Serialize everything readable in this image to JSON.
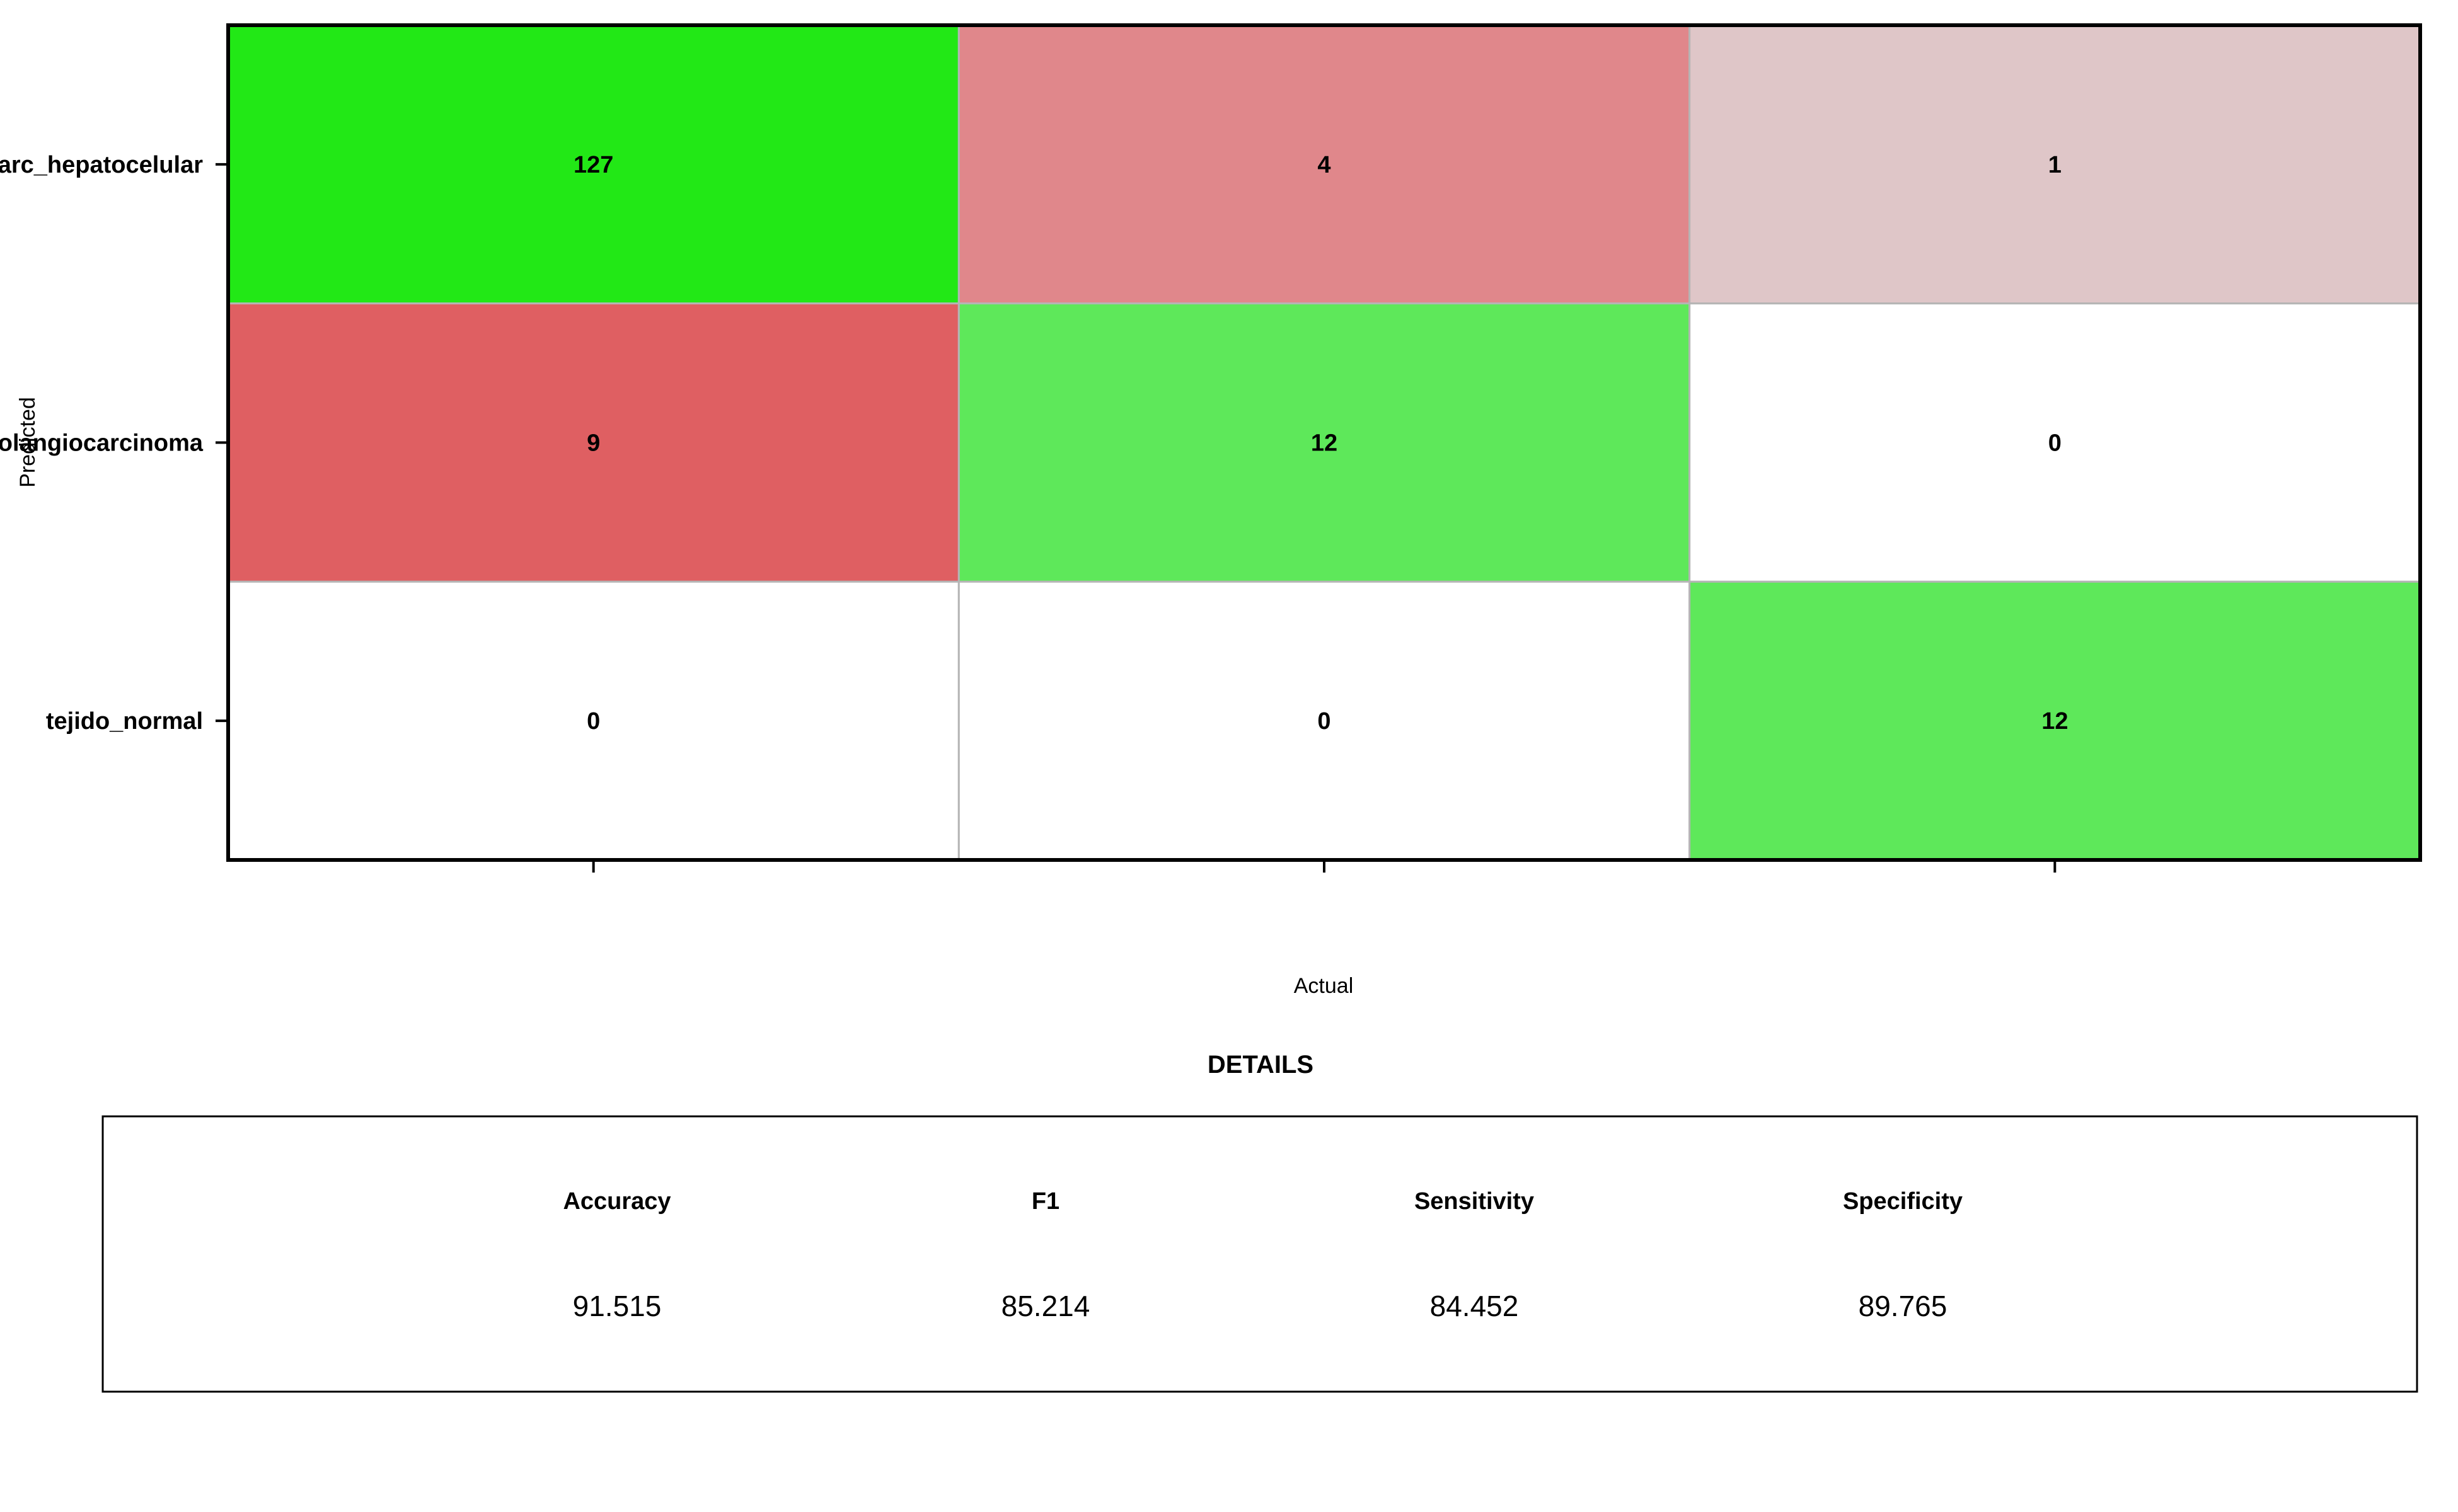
{
  "chart_data": {
    "type": "heatmap",
    "title": "",
    "xlabel": "Actual",
    "ylabel": "Predicted",
    "rows": [
      "carc_hepatocelular",
      "colangiocarcinoma",
      "tejido_normal"
    ],
    "columns": [
      "",
      "",
      ""
    ],
    "values": [
      [
        127,
        4,
        1
      ],
      [
        9,
        12,
        0
      ],
      [
        0,
        0,
        12
      ]
    ],
    "cell_colors": [
      [
        "#22e816",
        "#e0878b",
        "#dfc6c8"
      ],
      [
        "#df5f62",
        "#5ee85a",
        "#ffffff"
      ],
      [
        "#ffffff",
        "#ffffff",
        "#5ee85a"
      ]
    ],
    "colors": {
      "correct_high": "#22e816",
      "correct": "#5ee85a",
      "error_high": "#df5f62",
      "error_low": "#dfc6c8",
      "zero": "#ffffff"
    }
  },
  "details": {
    "title": "DETAILS",
    "metrics": [
      {
        "label": "Accuracy",
        "value": "91.515"
      },
      {
        "label": "F1",
        "value": "85.214"
      },
      {
        "label": "Sensitivity",
        "value": "84.452"
      },
      {
        "label": "Specificity",
        "value": "89.765"
      }
    ]
  }
}
